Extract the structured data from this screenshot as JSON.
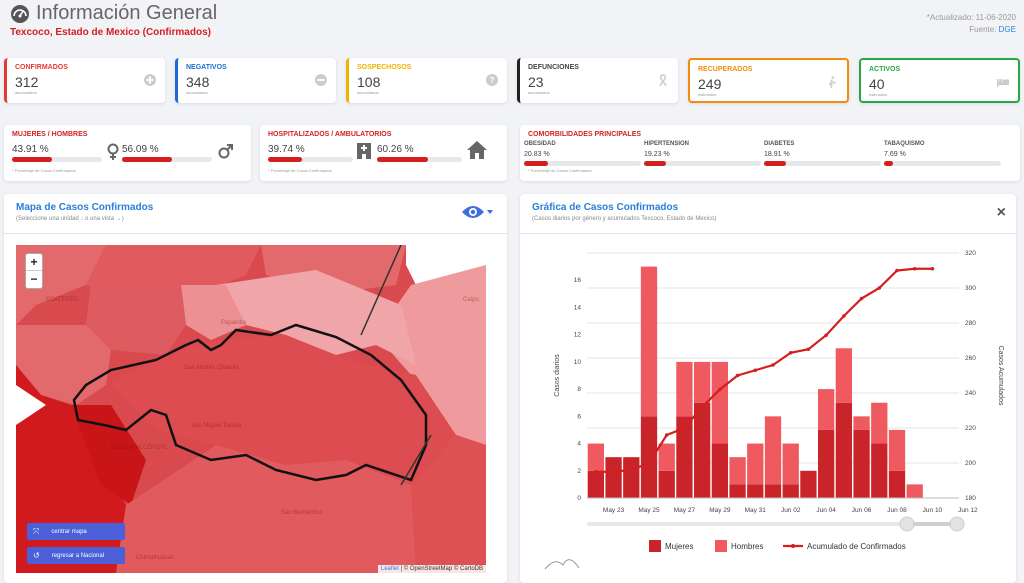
{
  "header": {
    "title": "Información General",
    "subtitle": "Texcoco, Estado de Mexico (Confirmados)",
    "updated": "*Actualizado: 11-06-2020",
    "source_label": "Fuente:",
    "source_link": "DGE"
  },
  "stats": [
    {
      "label": "CONFIRMADOS",
      "value": "312",
      "sub": "acumulados",
      "color": "#e53935",
      "icon": "plus-circle-icon"
    },
    {
      "label": "NEGATIVOS",
      "value": "348",
      "sub": "acumulados",
      "color": "#1e6bd0",
      "icon": "minus-circle-icon"
    },
    {
      "label": "SOSPECHOSOS",
      "value": "108",
      "sub": "acumulados",
      "color": "#f0b400",
      "icon": "question-circle-icon"
    },
    {
      "label": "DEFUNCIONES",
      "value": "23",
      "sub": "acumulados",
      "color": "#222222",
      "icon": "ribbon-icon"
    },
    {
      "label": "RECUPERADOS",
      "value": "249",
      "sub": "estimados",
      "color": "#f28c0f",
      "icon": "walking-icon"
    },
    {
      "label": "ACTIVOS",
      "value": "40",
      "sub": "estimados",
      "color": "#2aa745",
      "icon": "bed-icon"
    }
  ],
  "gender": {
    "title": "MUJERES / HOMBRES",
    "women": "43.91 %",
    "women_frac": 0.4391,
    "men": "56.09 %",
    "men_frac": 0.5609,
    "note": "* Porcentaje de Casos Confirmados"
  },
  "hosp": {
    "title": "HOSPITALIZADOS / AMBULATORIOS",
    "hosp": "39.74 %",
    "hosp_frac": 0.3974,
    "amb": "60.26 %",
    "amb_frac": 0.6026,
    "note": "* Porcentaje de Casos Confirmados"
  },
  "comorb": {
    "title": "COMORBILIDADES PRINCIPALES",
    "items": [
      {
        "name": "OBESIDAD",
        "value": "20.83 %",
        "frac": 0.2083
      },
      {
        "name": "HIPERTENSION",
        "value": "19.23 %",
        "frac": 0.1923
      },
      {
        "name": "DIABETES",
        "value": "18.91 %",
        "frac": 0.1891
      },
      {
        "name": "TABAQUISMO",
        "value": "7.69 %",
        "frac": 0.0769
      }
    ],
    "note": "* Porcentaje de Casos Confirmados"
  },
  "map_panel": {
    "title": "Mapa de Casos Confirmados",
    "subtitle": "(Seleccione una unidad ↓ o una vista →)",
    "zoom_in": "+",
    "zoom_out": "−",
    "center_btn": "centrar mapa",
    "national_btn": "regresar a Nacional",
    "attribution_leaflet": "Leaflet",
    "attribution_rest": "| © OpenStreetMap © CartoDB",
    "labels": [
      "ECATEPEC",
      "Calpu",
      "Papalotla",
      "San Andrés Chiautla",
      "San Miguel Tocuila",
      "NEZAHUALCÓYOTL",
      "San Bernardino",
      "Chimalhuacán"
    ]
  },
  "chart_panel": {
    "title": "Gráfica de Casos Confirmados",
    "subtitle": "(Casos diarios por género y acumulados Texcoco, Estado de Mexico)",
    "close": "×"
  },
  "chart_data": {
    "type": "bar",
    "x": [
      "May 22",
      "May 23",
      "May 24",
      "May 25",
      "May 26",
      "May 27",
      "May 28",
      "May 29",
      "May 30",
      "May 31",
      "Jun 01",
      "Jun 02",
      "Jun 03",
      "Jun 04",
      "Jun 05",
      "Jun 06",
      "Jun 07",
      "Jun 08",
      "Jun 09",
      "Jun 10"
    ],
    "tick_labels": [
      "May 23",
      "May 25",
      "May 27",
      "May 29",
      "May 31",
      "Jun 02",
      "Jun 04",
      "Jun 06",
      "Jun 08",
      "Jun 10",
      "Jun 12"
    ],
    "series": [
      {
        "name": "Mujeres",
        "type": "bar",
        "color": "#c8242a",
        "values": [
          2,
          3,
          3,
          6,
          2,
          6,
          7,
          4,
          1,
          1,
          1,
          1,
          2,
          5,
          7,
          5,
          4,
          2,
          0,
          0
        ]
      },
      {
        "name": "Hombres",
        "type": "bar",
        "color": "#ee5a5f",
        "values": [
          2,
          0,
          0,
          11,
          2,
          4,
          3,
          6,
          2,
          3,
          5,
          3,
          0,
          3,
          4,
          1,
          3,
          3,
          1,
          0
        ]
      },
      {
        "name": "Acumulado de Confirmados",
        "type": "line",
        "color": "#d41f1f",
        "values": [
          195,
          195,
          196,
          200,
          216,
          220,
          232,
          242,
          250,
          253,
          256,
          263,
          265,
          273,
          284,
          294,
          300,
          310,
          311,
          311
        ]
      }
    ],
    "ylabel_left": "Casos diarios",
    "ylabel_right": "Casos Acumulados",
    "ylim_left": [
      0,
      18
    ],
    "yticks_left": [
      0,
      2,
      4,
      6,
      8,
      10,
      12,
      14,
      16
    ],
    "ylim_right": [
      180,
      320
    ],
    "yticks_right": [
      180,
      200,
      220,
      240,
      260,
      280,
      300,
      320
    ],
    "legend_placement": "bottom",
    "grid": true
  }
}
